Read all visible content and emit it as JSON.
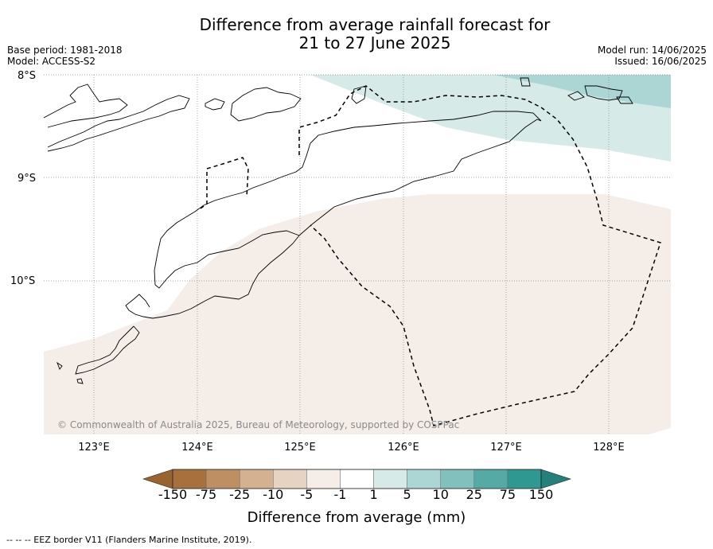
{
  "header": {
    "title_line1": "Difference from average rainfall forecast for",
    "title_line2": "21 to 27 June 2025",
    "base_period": "Base period: 1981-2018",
    "model": "Model: ACCESS-S2",
    "model_run": "Model run: 14/06/2025",
    "issued": "Issued: 16/06/2025"
  },
  "map": {
    "lat_labels": [
      "8°S",
      "9°S",
      "10°S"
    ],
    "lon_labels": [
      "123°E",
      "124°E",
      "125°E",
      "126°E",
      "127°E",
      "128°E"
    ],
    "copyright": "© Commonwealth of Australia 2025, Bureau of Meteorology, supported by COSPPac",
    "regions": [
      {
        "name": "wetter-band-north",
        "category": "1 to 5",
        "color": "#d6eae8"
      },
      {
        "name": "wetter-band-northeast",
        "category": "5 to 10",
        "color": "#acd6d4"
      },
      {
        "name": "drier-band-south",
        "category": "-5 to -1",
        "color": "#f4ede8"
      }
    ]
  },
  "colorbar": {
    "ticks": [
      "-150",
      "-75",
      "-25",
      "-10",
      "-5",
      "-1",
      "1",
      "5",
      "10",
      "25",
      "75",
      "150"
    ],
    "colors": [
      "#a8703c",
      "#bf8f64",
      "#d4b291",
      "#e6d3c1",
      "#f4ede8",
      "#ffffff",
      "#d6eae8",
      "#acd6d4",
      "#80c1bd",
      "#56aaa6",
      "#2e9891"
    ],
    "under_color": "#9a6431",
    "over_color": "#24807a",
    "label": "Difference from average (mm)"
  },
  "footnote": "--  --  -- EEZ border V11 (Flanders Marine Institute, 2019)."
}
